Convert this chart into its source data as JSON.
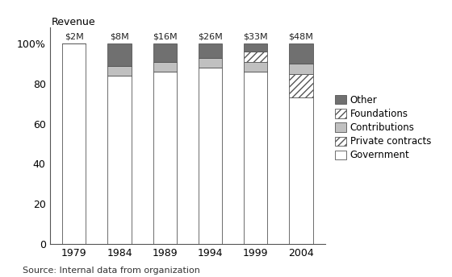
{
  "years": [
    "1979",
    "1984",
    "1989",
    "1994",
    "1999",
    "2004"
  ],
  "totals": [
    "$2M",
    "$8M",
    "$16M",
    "$26M",
    "$33M",
    "$48M"
  ],
  "government": [
    100,
    84,
    86,
    88,
    86,
    73
  ],
  "private_contracts": [
    0,
    0,
    0,
    0,
    0,
    12
  ],
  "contributions": [
    0,
    5,
    5,
    5,
    5,
    5
  ],
  "foundations": [
    0,
    0,
    0,
    0,
    5,
    0
  ],
  "other": [
    0,
    11,
    9,
    7,
    4,
    10
  ],
  "colors": {
    "government": "#ffffff",
    "private_contracts": "#ffffff",
    "contributions": "#c0c0c0",
    "foundations": "#ffffff",
    "other": "#707070"
  },
  "hatch": {
    "government": "",
    "private_contracts": "////",
    "contributions": "",
    "foundations": "////",
    "other": ""
  },
  "edgecolor": "#555555",
  "bar_width": 0.52,
  "ylim": [
    0,
    108
  ],
  "ylabel": "Revenue",
  "source": "Source: Internal data from organization",
  "yticks": [
    0,
    20,
    40,
    60,
    80,
    100
  ],
  "legend_fontsize": 8.5,
  "tick_fontsize": 9,
  "source_fontsize": 8
}
